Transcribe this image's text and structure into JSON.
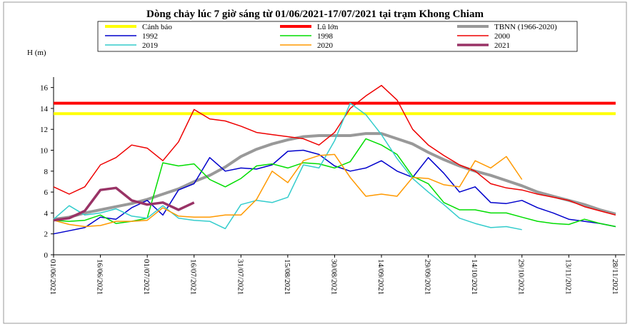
{
  "chart_data": {
    "type": "line",
    "title": "Dòng chảy lúc 7 giờ sáng từ 01/06/2021-17/07/2021 tại trạm Khong Chiam",
    "y_label": "H (m)",
    "x": [
      "01/06/2021",
      "06/06/2021",
      "11/06/2021",
      "16/06/2021",
      "21/06/2021",
      "26/06/2021",
      "01/07/2021",
      "06/07/2021",
      "11/07/2021",
      "16/07/2021",
      "21/07/2021",
      "26/07/2021",
      "31/07/2021",
      "05/08/2021",
      "10/08/2021",
      "15/08/2021",
      "20/08/2021",
      "25/08/2021",
      "30/08/2021",
      "04/09/2021",
      "09/09/2021",
      "14/09/2021",
      "19/09/2021",
      "24/09/2021",
      "29/09/2021",
      "04/10/2021",
      "09/10/2021",
      "14/10/2021",
      "19/10/2021",
      "24/10/2021",
      "29/10/2021",
      "03/11/2021",
      "08/11/2021",
      "13/11/2021",
      "18/11/2021",
      "23/11/2021",
      "28/11/2021"
    ],
    "xlim": [
      "01/06/2021",
      "01/12/2021"
    ],
    "xticks": [
      "01/06/2021",
      "16/06/2021",
      "01/07/2021",
      "16/07/2021",
      "31/07/2021",
      "15/08/2021",
      "30/08/2021",
      "14/09/2021",
      "29/09/2021",
      "14/10/2021",
      "29/10/2021",
      "13/11/2021",
      "28/11/2021"
    ],
    "ylim": [
      0,
      17
    ],
    "yticks": [
      0,
      2,
      4,
      6,
      8,
      10,
      12,
      14,
      16
    ],
    "series": [
      {
        "name": "Cảnh báo",
        "color": "#ffff00",
        "width": 4,
        "values": [
          13.5,
          13.5,
          13.5,
          13.5,
          13.5,
          13.5,
          13.5,
          13.5,
          13.5,
          13.5,
          13.5,
          13.5,
          13.5,
          13.5,
          13.5,
          13.5,
          13.5,
          13.5,
          13.5,
          13.5,
          13.5,
          13.5,
          13.5,
          13.5,
          13.5,
          13.5,
          13.5,
          13.5,
          13.5,
          13.5,
          13.5,
          13.5,
          13.5,
          13.5,
          13.5,
          13.5,
          13.5
        ]
      },
      {
        "name": "Lũ lớn",
        "color": "#ff0000",
        "width": 4,
        "values": [
          14.5,
          14.5,
          14.5,
          14.5,
          14.5,
          14.5,
          14.5,
          14.5,
          14.5,
          14.5,
          14.5,
          14.5,
          14.5,
          14.5,
          14.5,
          14.5,
          14.5,
          14.5,
          14.5,
          14.5,
          14.5,
          14.5,
          14.5,
          14.5,
          14.5,
          14.5,
          14.5,
          14.5,
          14.5,
          14.5,
          14.5,
          14.5,
          14.5,
          14.5,
          14.5,
          14.5,
          14.5
        ]
      },
      {
        "name": "TBNN (1966-2020)",
        "color": "#999999",
        "width": 4,
        "values": [
          3.4,
          3.6,
          4.0,
          4.3,
          4.6,
          4.9,
          5.3,
          5.8,
          6.3,
          7.0,
          7.6,
          8.4,
          9.4,
          10.1,
          10.6,
          11.0,
          11.3,
          11.4,
          11.4,
          11.4,
          11.6,
          11.6,
          11.1,
          10.6,
          9.8,
          9.1,
          8.5,
          8.0,
          7.6,
          7.1,
          6.6,
          6.0,
          5.6,
          5.2,
          4.8,
          4.3,
          3.9
        ]
      },
      {
        "name": "1992",
        "color": "#0000cc",
        "width": 1.5,
        "values": [
          2.0,
          2.3,
          2.6,
          3.6,
          3.4,
          4.5,
          5.2,
          3.8,
          6.2,
          6.8,
          9.3,
          8.0,
          8.3,
          8.2,
          8.6,
          9.9,
          10.0,
          9.6,
          8.5,
          8.0,
          8.3,
          9.0,
          8.0,
          7.4,
          9.3,
          7.8,
          6.0,
          6.5,
          5.0,
          4.9,
          5.2,
          4.5,
          4.0,
          3.4,
          3.2,
          3.0,
          2.7
        ]
      },
      {
        "name": "1998",
        "color": "#00dd00",
        "width": 1.5,
        "values": [
          3.3,
          3.2,
          3.3,
          3.8,
          3.0,
          3.2,
          3.5,
          8.8,
          8.5,
          8.7,
          7.2,
          6.5,
          7.3,
          8.5,
          8.7,
          8.3,
          8.8,
          8.7,
          8.3,
          8.9,
          11.1,
          10.5,
          9.6,
          7.5,
          6.8,
          5.0,
          4.3,
          4.3,
          4.0,
          4.0,
          3.6,
          3.2,
          3.0,
          2.9,
          3.4,
          3.0,
          2.7
        ]
      },
      {
        "name": "2000",
        "color": "#ee0000",
        "width": 1.5,
        "values": [
          6.5,
          5.8,
          6.5,
          8.6,
          9.3,
          10.5,
          10.2,
          9.0,
          10.8,
          13.9,
          13.0,
          12.8,
          12.3,
          11.7,
          11.5,
          11.3,
          11.1,
          10.5,
          11.7,
          14.0,
          15.2,
          16.2,
          14.8,
          12.0,
          10.5,
          9.5,
          8.6,
          8.0,
          6.8,
          6.4,
          6.2,
          5.8,
          5.5,
          5.2,
          4.6,
          4.2,
          3.8
        ]
      },
      {
        "name": "2019",
        "color": "#33cccc",
        "width": 1.5,
        "values": [
          3.4,
          4.7,
          3.8,
          4.0,
          4.4,
          3.7,
          3.5,
          4.7,
          3.5,
          3.3,
          3.2,
          2.5,
          4.8,
          5.2,
          5.0,
          5.5,
          8.6,
          8.3,
          10.9,
          14.5,
          13.4,
          11.5,
          9.2,
          7.3,
          6.0,
          4.8,
          3.5,
          3.0,
          2.6,
          2.7,
          2.4,
          null,
          null,
          null,
          null,
          null,
          null
        ]
      },
      {
        "name": "2020",
        "color": "#ff9900",
        "width": 1.5,
        "values": [
          3.3,
          2.9,
          2.7,
          2.8,
          3.2,
          3.2,
          3.3,
          4.5,
          3.7,
          3.6,
          3.6,
          3.8,
          3.8,
          5.3,
          8.0,
          6.9,
          9.0,
          9.5,
          9.6,
          7.4,
          5.6,
          5.8,
          5.6,
          7.4,
          7.3,
          6.7,
          6.5,
          9.0,
          8.3,
          9.4,
          7.2,
          null,
          null,
          null,
          null,
          null,
          null
        ]
      },
      {
        "name": "2021",
        "color": "#993366",
        "width": 3.5,
        "values": [
          3.3,
          3.5,
          4.2,
          6.2,
          6.4,
          5.2,
          4.8,
          5.0,
          4.3,
          5.0,
          null,
          null,
          null,
          null,
          null,
          null,
          null,
          null,
          null,
          null,
          null,
          null,
          null,
          null,
          null,
          null,
          null,
          null,
          null,
          null,
          null,
          null,
          null,
          null,
          null,
          null,
          null
        ]
      }
    ]
  }
}
